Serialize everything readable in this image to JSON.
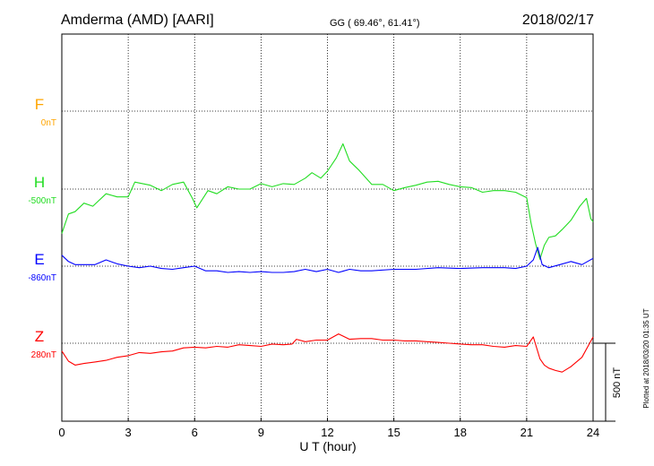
{
  "header": {
    "station": "Amderma (AMD)  [AARI]",
    "coords": "GG ( 69.46°,  61.41°)",
    "date": "2018/02/17"
  },
  "side_note": "Plotted at 2018/03/20 01:35 UT",
  "scale_label": "500 nT",
  "chart_data": {
    "type": "line",
    "xlabel": "U T (hour)",
    "ylabel": "",
    "xlim": [
      0,
      24
    ],
    "x_ticks": [
      0,
      3,
      6,
      9,
      12,
      15,
      18,
      21,
      24
    ],
    "x_tick_labels": [
      "0",
      "3",
      "6",
      "9",
      "12",
      "15",
      "18",
      "21",
      "24"
    ],
    "grid": true,
    "scale_bar_nT": 500,
    "series": [
      {
        "name": "F",
        "baseline_label": "0nT",
        "color": "#ffa500",
        "baseline_nT": 0,
        "x": [],
        "values": []
      },
      {
        "name": "H",
        "baseline_label": "-500nT",
        "color": "#22dd22",
        "baseline_nT": -500,
        "x": [
          0,
          0.3,
          0.6,
          1,
          1.4,
          2,
          2.5,
          3,
          3.3,
          4,
          4.5,
          5,
          5.5,
          5.9,
          6.1,
          6.6,
          7,
          7.5,
          8,
          8.5,
          9,
          9.5,
          10,
          10.5,
          11,
          11.3,
          11.7,
          12,
          12.4,
          12.7,
          13,
          13.4,
          14,
          14.5,
          15,
          15.5,
          16,
          16.5,
          17,
          17.5,
          18,
          18.5,
          19,
          19.5,
          20,
          20.5,
          21,
          21.2,
          21.4,
          21.6,
          21.8,
          22,
          22.3,
          22.6,
          23,
          23.4,
          23.7,
          23.9,
          24
        ],
        "values": [
          -785,
          -660,
          -645,
          -590,
          -610,
          -530,
          -550,
          -550,
          -455,
          -475,
          -510,
          -470,
          -455,
          -560,
          -620,
          -510,
          -530,
          -485,
          -500,
          -500,
          -465,
          -485,
          -465,
          -470,
          -430,
          -395,
          -430,
          -385,
          -300,
          -210,
          -320,
          -375,
          -470,
          -470,
          -510,
          -490,
          -475,
          -455,
          -450,
          -470,
          -485,
          -490,
          -520,
          -510,
          -510,
          -520,
          -555,
          -720,
          -850,
          -950,
          -860,
          -810,
          -800,
          -760,
          -700,
          -610,
          -560,
          -690,
          -710
        ]
      },
      {
        "name": "E",
        "baseline_label": "-860nT",
        "color": "#0000ff",
        "baseline_nT": -860,
        "x": [
          0,
          0.3,
          0.6,
          1,
          1.5,
          2,
          2.5,
          3,
          3.5,
          4,
          4.5,
          5,
          5.5,
          6,
          6.5,
          7,
          7.5,
          8,
          8.5,
          9,
          9.5,
          10,
          10.5,
          11,
          11.5,
          12,
          12.5,
          13,
          13.5,
          14,
          15,
          16,
          17,
          18,
          19,
          20,
          20.5,
          21,
          21.3,
          21.5,
          21.7,
          22,
          22.5,
          23,
          23.5,
          24
        ],
        "values": [
          -790,
          -830,
          -850,
          -850,
          -850,
          -820,
          -845,
          -860,
          -870,
          -860,
          -875,
          -880,
          -870,
          -860,
          -890,
          -890,
          -900,
          -895,
          -900,
          -895,
          -900,
          -900,
          -895,
          -880,
          -895,
          -880,
          -900,
          -880,
          -890,
          -890,
          -880,
          -880,
          -870,
          -875,
          -870,
          -870,
          -875,
          -860,
          -820,
          -740,
          -850,
          -870,
          -850,
          -830,
          -850,
          -810
        ]
      },
      {
        "name": "Z",
        "baseline_label": "280nT",
        "color": "#ff0000",
        "baseline_nT": 280,
        "x": [
          0,
          0.3,
          0.6,
          1,
          1.5,
          2,
          2.5,
          3,
          3.5,
          4,
          4.5,
          5,
          5.5,
          6,
          6.5,
          7,
          7.5,
          8,
          8.5,
          9,
          9.5,
          10,
          10.4,
          10.6,
          11,
          11.5,
          12,
          12.5,
          13,
          13.5,
          14,
          14.5,
          15,
          15.5,
          16,
          16.5,
          17,
          17.5,
          18,
          18.5,
          19,
          19.5,
          20,
          20.5,
          21,
          21.3,
          21.6,
          21.8,
          22,
          22.3,
          22.6,
          23,
          23.5,
          24
        ],
        "values": [
          230,
          165,
          140,
          150,
          160,
          170,
          190,
          200,
          220,
          215,
          225,
          230,
          250,
          255,
          250,
          260,
          255,
          270,
          265,
          260,
          275,
          270,
          275,
          305,
          290,
          300,
          300,
          340,
          305,
          310,
          310,
          300,
          300,
          295,
          295,
          290,
          285,
          280,
          275,
          270,
          270,
          260,
          255,
          265,
          260,
          320,
          180,
          140,
          120,
          105,
          95,
          130,
          190,
          320
        ]
      }
    ]
  }
}
